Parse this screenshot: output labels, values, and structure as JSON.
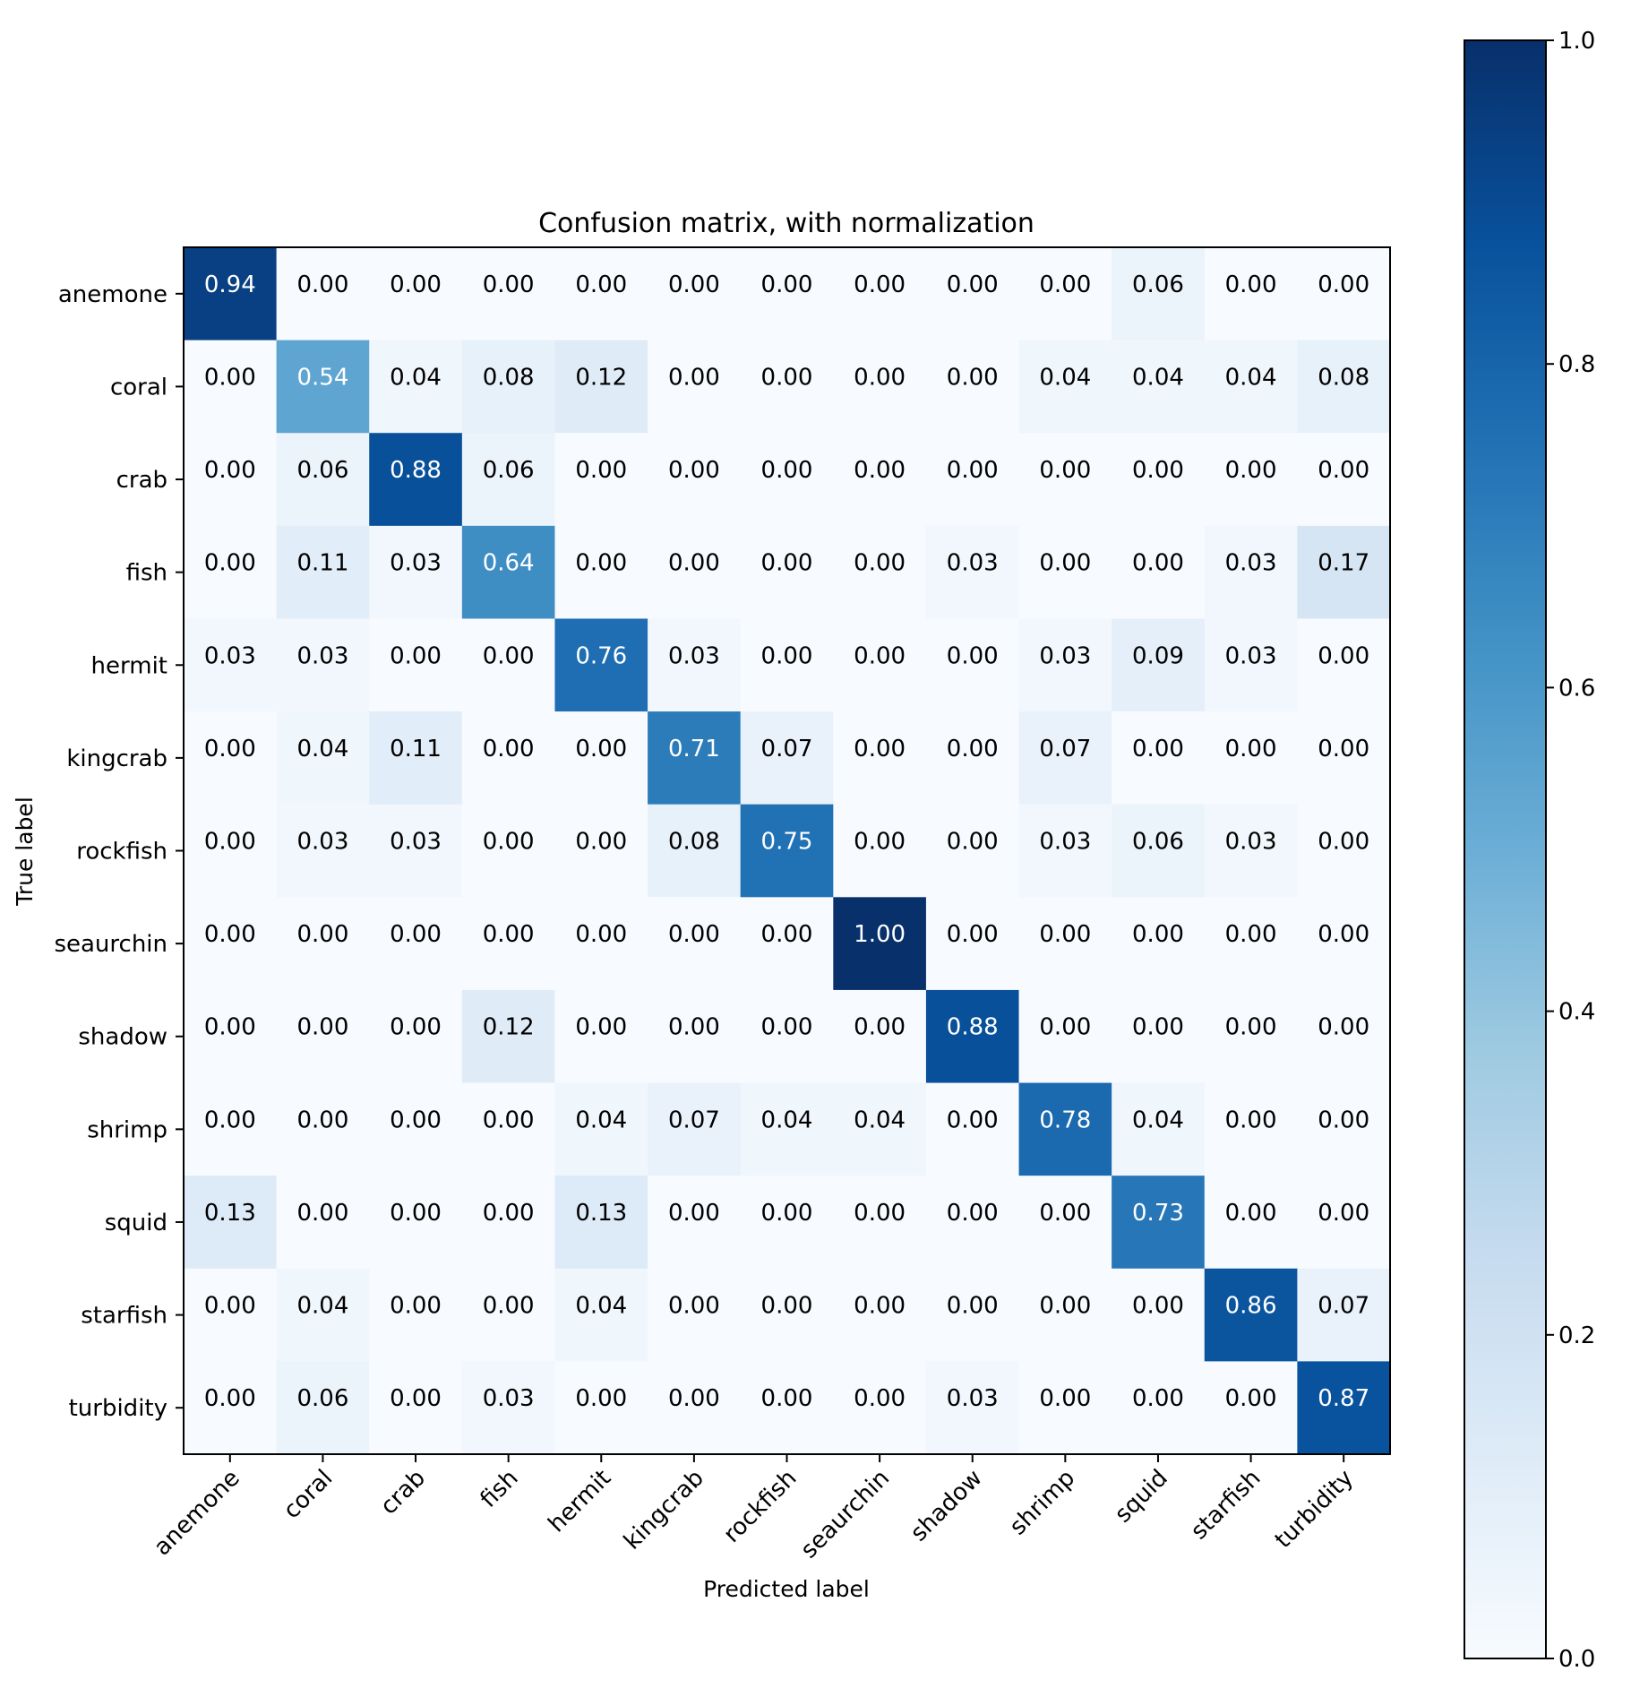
{
  "chart_data": {
    "type": "heatmap",
    "title": "Confusion matrix, with normalization",
    "xlabel": "Predicted label",
    "ylabel": "True label",
    "categories": [
      "anemone",
      "coral",
      "crab",
      "fish",
      "hermit",
      "kingcrab",
      "rockfish",
      "seaurchin",
      "shadow",
      "shrimp",
      "squid",
      "starfish",
      "turbidity"
    ],
    "values": [
      [
        0.94,
        0.0,
        0.0,
        0.0,
        0.0,
        0.0,
        0.0,
        0.0,
        0.0,
        0.0,
        0.06,
        0.0,
        0.0
      ],
      [
        0.0,
        0.54,
        0.04,
        0.08,
        0.12,
        0.0,
        0.0,
        0.0,
        0.0,
        0.04,
        0.04,
        0.04,
        0.08
      ],
      [
        0.0,
        0.06,
        0.88,
        0.06,
        0.0,
        0.0,
        0.0,
        0.0,
        0.0,
        0.0,
        0.0,
        0.0,
        0.0
      ],
      [
        0.0,
        0.11,
        0.03,
        0.64,
        0.0,
        0.0,
        0.0,
        0.0,
        0.03,
        0.0,
        0.0,
        0.03,
        0.17
      ],
      [
        0.03,
        0.03,
        0.0,
        0.0,
        0.76,
        0.03,
        0.0,
        0.0,
        0.0,
        0.03,
        0.09,
        0.03,
        0.0
      ],
      [
        0.0,
        0.04,
        0.11,
        0.0,
        0.0,
        0.71,
        0.07,
        0.0,
        0.0,
        0.07,
        0.0,
        0.0,
        0.0
      ],
      [
        0.0,
        0.03,
        0.03,
        0.0,
        0.0,
        0.08,
        0.75,
        0.0,
        0.0,
        0.03,
        0.06,
        0.03,
        0.0
      ],
      [
        0.0,
        0.0,
        0.0,
        0.0,
        0.0,
        0.0,
        0.0,
        1.0,
        0.0,
        0.0,
        0.0,
        0.0,
        0.0
      ],
      [
        0.0,
        0.0,
        0.0,
        0.12,
        0.0,
        0.0,
        0.0,
        0.0,
        0.88,
        0.0,
        0.0,
        0.0,
        0.0
      ],
      [
        0.0,
        0.0,
        0.0,
        0.0,
        0.04,
        0.07,
        0.04,
        0.04,
        0.0,
        0.78,
        0.04,
        0.0,
        0.0
      ],
      [
        0.13,
        0.0,
        0.0,
        0.0,
        0.13,
        0.0,
        0.0,
        0.0,
        0.0,
        0.0,
        0.73,
        0.0,
        0.0
      ],
      [
        0.0,
        0.04,
        0.0,
        0.0,
        0.04,
        0.0,
        0.0,
        0.0,
        0.0,
        0.0,
        0.0,
        0.86,
        0.07
      ],
      [
        0.0,
        0.06,
        0.0,
        0.03,
        0.0,
        0.0,
        0.0,
        0.0,
        0.03,
        0.0,
        0.0,
        0.0,
        0.87
      ]
    ],
    "value_format_decimals": 2,
    "colormap": "Blues",
    "colormap_stops": [
      "#f7fbff",
      "#deebf7",
      "#c6dbef",
      "#9ecae1",
      "#6baed6",
      "#4292c6",
      "#2171b5",
      "#08519c",
      "#08306b"
    ],
    "label_threshold": 0.5,
    "text_color_dark": "#000000",
    "text_color_light": "#ffffff",
    "colorbar": {
      "range": [
        0.0,
        1.0
      ],
      "ticks": [
        0.0,
        0.2,
        0.4,
        0.6,
        0.8,
        1.0
      ],
      "tick_labels": [
        "0.0",
        "0.2",
        "0.4",
        "0.6",
        "0.8",
        "1.0"
      ]
    }
  }
}
